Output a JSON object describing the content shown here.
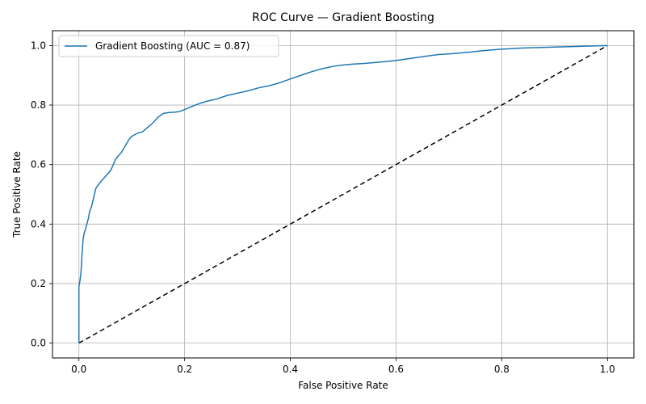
{
  "chart_data": {
    "type": "line",
    "title": "ROC Curve — Gradient Boosting",
    "xlabel": "False Positive Rate",
    "ylabel": "True Positive Rate",
    "xlim": [
      -0.05,
      1.05
    ],
    "ylim": [
      -0.05,
      1.05
    ],
    "xticks": [
      "0.0",
      "0.2",
      "0.4",
      "0.6",
      "0.8",
      "1.0"
    ],
    "yticks": [
      "0.0",
      "0.2",
      "0.4",
      "0.6",
      "0.8",
      "1.0"
    ],
    "grid": true,
    "legend_position": "top-left",
    "series": [
      {
        "name": "Gradient Boosting (AUC = 0.87)",
        "color": "#1f77b4",
        "style": "solid",
        "x": [
          0.0,
          0.0,
          0.0,
          0.002,
          0.004,
          0.006,
          0.008,
          0.01,
          0.012,
          0.015,
          0.018,
          0.02,
          0.024,
          0.028,
          0.032,
          0.036,
          0.04,
          0.045,
          0.05,
          0.055,
          0.06,
          0.065,
          0.07,
          0.075,
          0.08,
          0.085,
          0.09,
          0.095,
          0.1,
          0.11,
          0.12,
          0.13,
          0.14,
          0.15,
          0.16,
          0.17,
          0.18,
          0.19,
          0.2,
          0.22,
          0.24,
          0.26,
          0.28,
          0.3,
          0.32,
          0.34,
          0.36,
          0.38,
          0.4,
          0.42,
          0.44,
          0.46,
          0.48,
          0.5,
          0.52,
          0.54,
          0.56,
          0.58,
          0.6,
          0.62,
          0.64,
          0.66,
          0.68,
          0.7,
          0.72,
          0.74,
          0.76,
          0.78,
          0.8,
          0.82,
          0.84,
          0.86,
          0.88,
          0.9,
          0.92,
          0.94,
          0.96,
          0.98,
          1.0
        ],
        "y": [
          0.0,
          0.17,
          0.19,
          0.21,
          0.24,
          0.3,
          0.35,
          0.37,
          0.38,
          0.4,
          0.42,
          0.44,
          0.46,
          0.49,
          0.52,
          0.53,
          0.54,
          0.55,
          0.56,
          0.57,
          0.58,
          0.6,
          0.62,
          0.63,
          0.64,
          0.655,
          0.67,
          0.685,
          0.695,
          0.705,
          0.71,
          0.725,
          0.74,
          0.76,
          0.772,
          0.775,
          0.776,
          0.778,
          0.785,
          0.8,
          0.812,
          0.82,
          0.832,
          0.84,
          0.848,
          0.858,
          0.865,
          0.875,
          0.888,
          0.9,
          0.912,
          0.922,
          0.93,
          0.935,
          0.938,
          0.94,
          0.943,
          0.946,
          0.95,
          0.955,
          0.96,
          0.965,
          0.97,
          0.972,
          0.975,
          0.978,
          0.982,
          0.985,
          0.988,
          0.99,
          0.992,
          0.993,
          0.994,
          0.995,
          0.996,
          0.997,
          0.998,
          0.999,
          1.0
        ]
      },
      {
        "name": "",
        "color": "#000000",
        "style": "dashed",
        "x": [
          0.0,
          1.0
        ],
        "y": [
          0.0,
          1.0
        ]
      }
    ]
  }
}
